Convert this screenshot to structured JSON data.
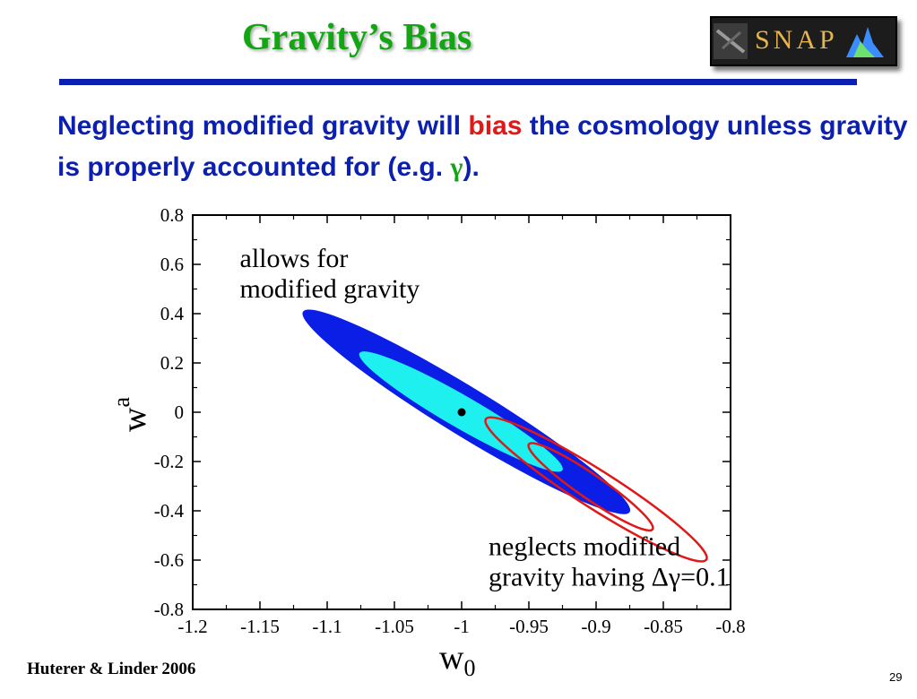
{
  "slide": {
    "title": "Gravity’s Bias",
    "headline": {
      "part1": "Neglecting modified gravity will ",
      "highlight": "bias",
      "part2": " the cosmology unless gravity is properly accounted for (e.g. ",
      "symbol": "γ",
      "part3": ")."
    },
    "logo_text": "SNAP",
    "citation": "Huterer & Linder 2006",
    "page_number": "29"
  },
  "colors": {
    "title": "#14a514",
    "headline": "#0b1fb0",
    "highlight_red": "#e01818",
    "ellipse_outer": "#0a1ee6",
    "ellipse_inner": "#1ef0f0",
    "ellipse_red": "#e01818"
  },
  "chart_data": {
    "type": "scatter",
    "xlabel_main": "w",
    "xlabel_sub": "0",
    "ylabel_main": "w",
    "ylabel_sub": "a",
    "xlim": [
      -1.2,
      -0.8
    ],
    "ylim": [
      -0.8,
      0.8
    ],
    "xticks": [
      -1.2,
      -1.15,
      -1.1,
      -1.05,
      -1,
      -0.95,
      -0.9,
      -0.85,
      -0.8
    ],
    "xtick_labels": [
      "-1.2",
      "-1.15",
      "-1.1",
      "-1.05",
      "-1",
      "-0.95",
      "-0.9",
      "-0.85",
      "-0.8"
    ],
    "yticks": [
      0.8,
      0.6,
      0.4,
      0.2,
      0,
      -0.2,
      -0.4,
      -0.6,
      -0.8
    ],
    "ytick_labels": [
      "0.8",
      "0.6",
      "0.4",
      "0.2",
      "0",
      "-0.2",
      "-0.4",
      "-0.6",
      "-0.8"
    ],
    "fiducial_point": {
      "x": -1.0,
      "y": 0.0
    },
    "ellipses": [
      {
        "label": "allows-modified-gravity-outer",
        "ends": [
          [
            -1.118,
            0.408
          ],
          [
            -0.875,
            -0.405
          ]
        ],
        "minor_halfwidth": 0.018,
        "style": "fill-blue"
      },
      {
        "label": "allows-modified-gravity-inner",
        "ends": [
          [
            -1.076,
            0.24
          ],
          [
            -0.925,
            -0.235
          ]
        ],
        "minor_halfwidth": 0.012,
        "style": "fill-cyan"
      },
      {
        "label": "neglects-modified-gravity-outer",
        "ends": [
          [
            -0.982,
            -0.028
          ],
          [
            -0.818,
            -0.598
          ]
        ],
        "minor_halfwidth": 0.014,
        "style": "outline-red"
      },
      {
        "label": "neglects-modified-gravity-inner",
        "ends": [
          [
            -0.95,
            -0.13
          ],
          [
            -0.858,
            -0.475
          ]
        ],
        "minor_halfwidth": 0.009,
        "style": "outline-red"
      }
    ],
    "annotations": [
      {
        "line1": "allows for",
        "line2": "modified gravity",
        "x": -1.165,
        "y": 0.59
      },
      {
        "line1": "neglects modified",
        "line2": "gravity having Δγ=0.1",
        "x": -0.98,
        "y": -0.58
      }
    ]
  }
}
